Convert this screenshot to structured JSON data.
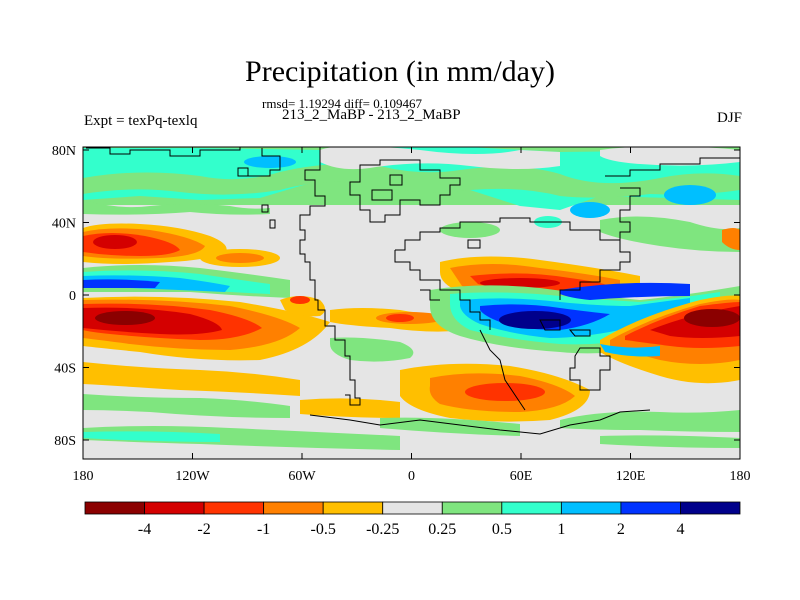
{
  "figure": {
    "title": "Precipitation (in mm/day)",
    "stats": "rmsd= 1.19294 diff= 0.109467",
    "subtitle": "213_2_MaBP - 213_2_MaBP",
    "left_label": "Expt = texPq-texlq",
    "right_label": "DJF"
  },
  "axes": {
    "lon_ticks": [
      "180",
      "120W",
      "60W",
      "0",
      "60E",
      "120E",
      "180"
    ],
    "lat_ticks": [
      "80N",
      "40N",
      "0",
      "40S",
      "80S"
    ]
  },
  "colorbar": {
    "labels": [
      "-4",
      "-2",
      "-1",
      "-0.5",
      "-0.25",
      "0.25",
      "0.5",
      "1",
      "2",
      "4"
    ],
    "colors": [
      "#8b0000",
      "#d40000",
      "#ff3300",
      "#ff8000",
      "#ffbf00",
      "#e5e5e5",
      "#7fe57f",
      "#33ffcc",
      "#00bfff",
      "#0033ff",
      "#00008b"
    ]
  },
  "colors": {
    "land_outline": "#000000",
    "background": "#e5e5e5"
  }
}
